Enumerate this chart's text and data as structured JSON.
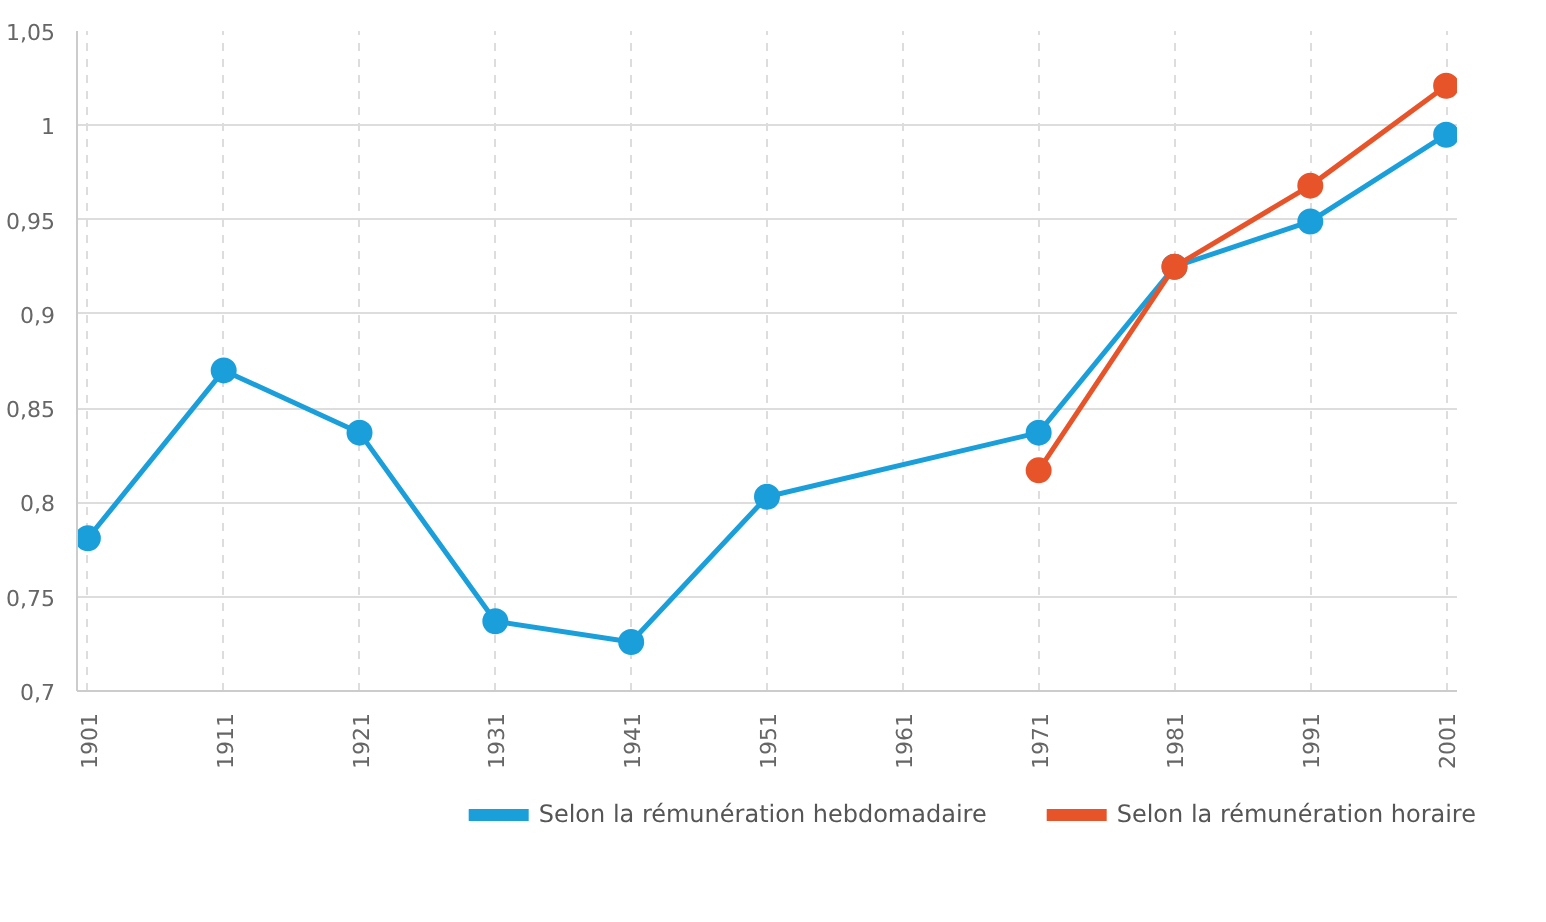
{
  "chart_data": {
    "type": "line",
    "categories": [
      "1901",
      "1911",
      "1921",
      "1931",
      "1941",
      "1951",
      "1961",
      "1971",
      "1981",
      "1991",
      "2001"
    ],
    "series": [
      {
        "name": "Selon la rémunération hebdomadaire",
        "color": "#1a9fdb",
        "values": [
          0.781,
          0.87,
          0.837,
          0.737,
          0.726,
          0.803,
          null,
          0.837,
          0.925,
          0.949,
          0.995
        ]
      },
      {
        "name": "Selon la rémunération horaire",
        "color": "#e8542a",
        "values": [
          null,
          null,
          null,
          null,
          null,
          null,
          null,
          0.817,
          0.925,
          0.968,
          1.021
        ]
      }
    ],
    "ylim": [
      0.7,
      1.05
    ],
    "yticks": [
      {
        "value": 0.7,
        "label": "0,7"
      },
      {
        "value": 0.75,
        "label": "0,75"
      },
      {
        "value": 0.8,
        "label": "0,8"
      },
      {
        "value": 0.85,
        "label": "0,85"
      },
      {
        "value": 0.9,
        "label": "0,9"
      },
      {
        "value": 0.95,
        "label": "0,95"
      },
      {
        "value": 1,
        "label": "1"
      },
      {
        "value": 1.05,
        "label": "1,05"
      }
    ],
    "grid": true,
    "legend": "bottom",
    "marker": "circle",
    "line_style": "solid"
  }
}
